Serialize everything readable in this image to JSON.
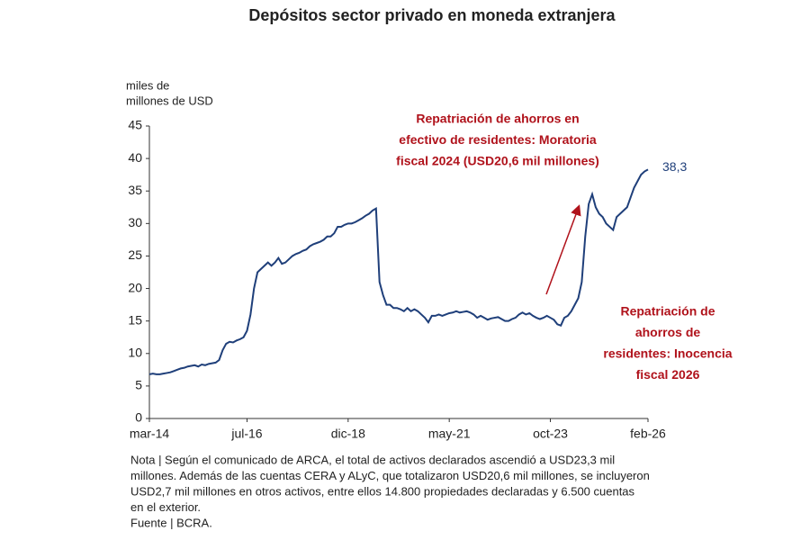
{
  "chart_data": {
    "type": "line",
    "title": "Depósitos sector privado en moneda extranjera",
    "ylabel": [
      "miles de",
      "millones de USD"
    ],
    "x": [
      "2014-03",
      "2014-04",
      "2014-05",
      "2014-06",
      "2014-07",
      "2014-08",
      "2014-09",
      "2014-10",
      "2014-11",
      "2014-12",
      "2015-01",
      "2015-02",
      "2015-03",
      "2015-04",
      "2015-05",
      "2015-06",
      "2015-07",
      "2015-08",
      "2015-09",
      "2015-10",
      "2015-11",
      "2015-12",
      "2016-01",
      "2016-02",
      "2016-03",
      "2016-04",
      "2016-05",
      "2016-06",
      "2016-07",
      "2016-08",
      "2016-09",
      "2016-10",
      "2016-11",
      "2016-12",
      "2017-01",
      "2017-02",
      "2017-03",
      "2017-04",
      "2017-05",
      "2017-06",
      "2017-07",
      "2017-08",
      "2017-09",
      "2017-10",
      "2017-11",
      "2017-12",
      "2018-01",
      "2018-02",
      "2018-03",
      "2018-04",
      "2018-05",
      "2018-06",
      "2018-07",
      "2018-08",
      "2018-09",
      "2018-10",
      "2018-11",
      "2018-12",
      "2019-01",
      "2019-02",
      "2019-03",
      "2019-04",
      "2019-05",
      "2019-06",
      "2019-07",
      "2019-08",
      "2019-09",
      "2019-10",
      "2019-11",
      "2019-12",
      "2020-01",
      "2020-02",
      "2020-03",
      "2020-04",
      "2020-05",
      "2020-06",
      "2020-07",
      "2020-08",
      "2020-09",
      "2020-10",
      "2020-11",
      "2020-12",
      "2021-01",
      "2021-02",
      "2021-03",
      "2021-04",
      "2021-05",
      "2021-06",
      "2021-07",
      "2021-08",
      "2021-09",
      "2021-10",
      "2021-11",
      "2021-12",
      "2022-01",
      "2022-02",
      "2022-03",
      "2022-04",
      "2022-05",
      "2022-06",
      "2022-07",
      "2022-08",
      "2022-09",
      "2022-10",
      "2022-11",
      "2022-12",
      "2023-01",
      "2023-02",
      "2023-03",
      "2023-04",
      "2023-05",
      "2023-06",
      "2023-07",
      "2023-08",
      "2023-09",
      "2023-10",
      "2023-11",
      "2023-12",
      "2024-01",
      "2024-02",
      "2024-03",
      "2024-04",
      "2024-05",
      "2024-06",
      "2024-07",
      "2024-08",
      "2024-09",
      "2024-10",
      "2024-11",
      "2024-12",
      "2025-01",
      "2025-02",
      "2025-03",
      "2025-04",
      "2025-05",
      "2025-06",
      "2025-07",
      "2025-08",
      "2025-09",
      "2025-10",
      "2025-11",
      "2025-12",
      "2026-01",
      "2026-02"
    ],
    "series": [
      {
        "color": "#1f3f7a",
        "end_label": "38,3",
        "values": [
          6.8,
          6.9,
          6.8,
          6.8,
          6.9,
          7.0,
          7.1,
          7.3,
          7.5,
          7.7,
          7.8,
          8.0,
          8.1,
          8.2,
          8.0,
          8.3,
          8.2,
          8.4,
          8.5,
          8.6,
          9.0,
          10.5,
          11.5,
          11.8,
          11.7,
          12.0,
          12.2,
          12.5,
          13.5,
          16.0,
          20.0,
          22.5,
          23.0,
          23.5,
          24.0,
          23.5,
          24.0,
          24.7,
          23.8,
          24.0,
          24.5,
          25.0,
          25.3,
          25.5,
          25.8,
          26.0,
          26.5,
          26.8,
          27.0,
          27.2,
          27.5,
          28.0,
          28.0,
          28.5,
          29.5,
          29.5,
          29.8,
          30.0,
          30.0,
          30.2,
          30.5,
          30.8,
          31.2,
          31.5,
          32.0,
          32.3,
          21.0,
          19.0,
          17.5,
          17.5,
          17.0,
          17.0,
          16.8,
          16.5,
          17.0,
          16.5,
          16.8,
          16.5,
          16.0,
          15.5,
          14.8,
          15.8,
          15.8,
          16.0,
          15.8,
          16.0,
          16.2,
          16.3,
          16.5,
          16.3,
          16.4,
          16.5,
          16.3,
          16.0,
          15.5,
          15.8,
          15.5,
          15.2,
          15.4,
          15.5,
          15.6,
          15.3,
          15.0,
          15.0,
          15.3,
          15.5,
          16.0,
          16.3,
          16.0,
          16.2,
          15.8,
          15.5,
          15.3,
          15.5,
          15.8,
          15.5,
          15.2,
          14.5,
          14.3,
          15.5,
          15.8,
          16.5,
          17.5,
          18.5,
          21.0,
          28.0,
          33.0,
          34.5,
          32.5,
          31.5,
          31.0,
          30.0,
          29.5,
          29.0,
          31.0,
          31.5,
          32.0,
          32.5,
          34.0,
          35.5,
          36.5,
          37.5,
          38.0,
          38.3
        ]
      }
    ],
    "xlim": [
      "2014-03",
      "2026-02"
    ],
    "xticks": [
      {
        "value": "2014-03",
        "label": "mar-14"
      },
      {
        "value": "2016-07",
        "label": "jul-16"
      },
      {
        "value": "2018-12",
        "label": "dic-18"
      },
      {
        "value": "2021-05",
        "label": "may-21"
      },
      {
        "value": "2023-10",
        "label": "oct-23"
      },
      {
        "value": "2026-02",
        "label": "feb-26"
      }
    ],
    "ylim": [
      0,
      45
    ],
    "yticks": [
      0,
      5,
      10,
      15,
      20,
      25,
      30,
      35,
      40,
      45
    ],
    "annotations": [
      {
        "color": "#b0121b",
        "lines": [
          "Repatriación de ahorros en",
          "efectivo de residentes: Moratoria",
          "fiscal 2024 (USD20,6 mil millones)"
        ]
      },
      {
        "color": "#b0121b",
        "lines": [
          "Repatriación de",
          "ahorros de",
          "residentes: Inocencia",
          "fiscal 2026"
        ]
      }
    ],
    "note": [
      "Nota | Según el comunicado de ARCA, el total de activos declarados ascendió a USD23,3 mil",
      "millones. Además de las cuentas CERA y ALyC, que totalizaron USD20,6 mil millones, se incluyeron",
      "USD2,7 mil millones en otros activos, entre ellos 14.800 propiedades declaradas y 6.500 cuentas",
      "en el exterior."
    ],
    "source": "Fuente | BCRA."
  }
}
